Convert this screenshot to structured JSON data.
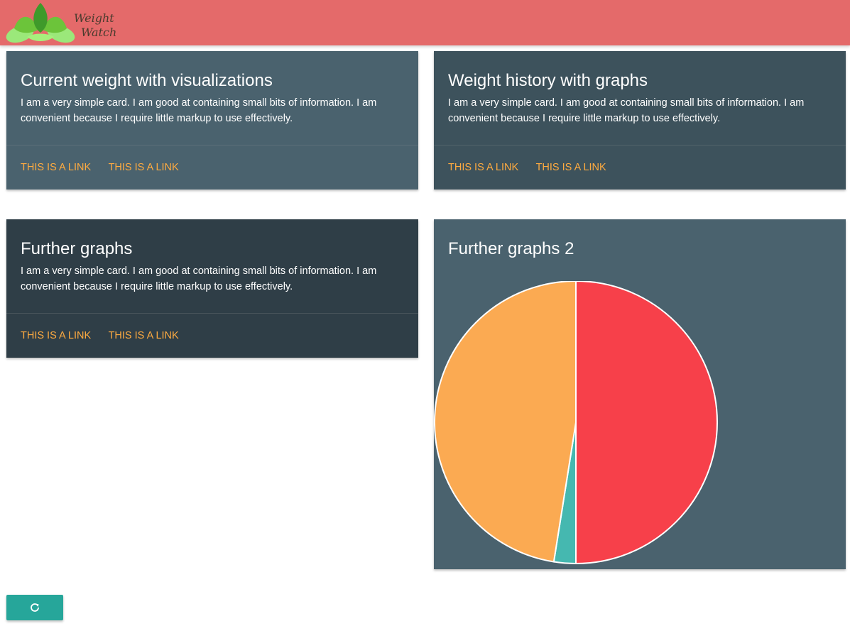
{
  "header": {
    "logo_line1": "Weight",
    "logo_line2": "Watch",
    "background": "#e46a6a"
  },
  "cards": [
    {
      "title": "Current weight with visualizations",
      "text": "I am a very simple card. I am good at containing small bits of information. I am convenient because I require little markup to use effectively.",
      "links": [
        "THIS IS A LINK",
        "THIS IS A LINK"
      ]
    },
    {
      "title": "Weight history with graphs",
      "text": "I am a very simple card. I am good at containing small bits of information. I am convenient because I require little markup to use effectively.",
      "links": [
        "THIS IS A LINK",
        "THIS IS A LINK"
      ]
    },
    {
      "title": "Further graphs",
      "text": "I am a very simple card. I am good at containing small bits of information. I am convenient because I require little markup to use effectively.",
      "links": [
        "THIS IS A LINK",
        "THIS IS A LINK"
      ]
    },
    {
      "title": "Further graphs 2"
    }
  ],
  "chart_data": {
    "type": "pie",
    "title": "",
    "slices": [
      {
        "value": 50,
        "color": "#f7404a"
      },
      {
        "value": 2.5,
        "color": "#45b8b0"
      },
      {
        "value": 47.5,
        "color": "#fbaa52"
      }
    ]
  },
  "refresh_button": {
    "icon": "refresh-icon",
    "color": "#26a69a"
  },
  "colors": {
    "accent_link": "#ffab40",
    "card_slate": "#4a626e",
    "card_dark_slate": "#3d525c",
    "card_darkest": "#2f3e47"
  }
}
